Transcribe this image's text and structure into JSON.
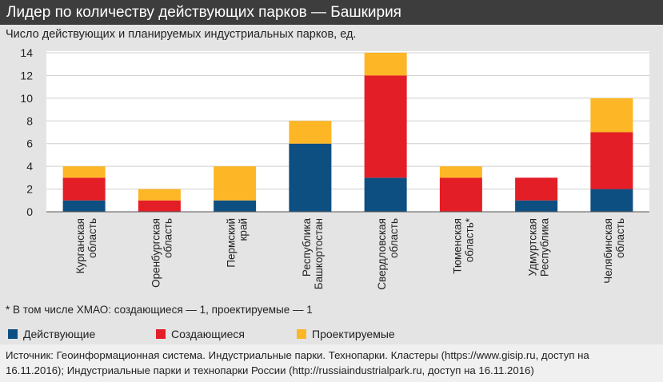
{
  "header": {
    "title": "Лидер по количеству действующих парков — Башкирия",
    "subtitle": "Число действующих и планируемых индустриальных парков, ед."
  },
  "colors": {
    "active": "#0e4f82",
    "creating": "#e41e26",
    "planned": "#fdb625"
  },
  "chart_data": {
    "type": "bar",
    "stacked": true,
    "categories": [
      [
        "Курганская",
        "область"
      ],
      [
        "Оренбургская",
        "область"
      ],
      [
        "Пермский",
        "край"
      ],
      [
        "Республика",
        "Башкортостан"
      ],
      [
        "Свердловская",
        "область"
      ],
      [
        "Тюменская",
        "область*"
      ],
      [
        "Удмуртская",
        "Республика"
      ],
      [
        "Челябинская",
        "область"
      ]
    ],
    "series": [
      {
        "name": "Действующие",
        "color": "#0e4f82",
        "values": [
          1,
          0,
          1,
          6,
          3,
          0,
          1,
          2
        ]
      },
      {
        "name": "Создающиеся",
        "color": "#e41e26",
        "values": [
          2,
          1,
          0,
          0,
          9,
          3,
          2,
          5
        ]
      },
      {
        "name": "Проектируемые",
        "color": "#fdb625",
        "values": [
          1,
          1,
          3,
          2,
          2,
          1,
          0,
          3
        ]
      }
    ],
    "ylim": [
      0,
      14
    ],
    "yticks": [
      0,
      2,
      4,
      6,
      8,
      10,
      12,
      14
    ],
    "grid": true,
    "legend_position": "bottom"
  },
  "footnote": "* В том числе ХМАО: создающиеся — 1, проектируемые — 1",
  "source": {
    "line1": "Источник:  Геоинформационная система. Индустриальные парки. Технопарки. Кластеры (https://www.gisip.ru, доступ на",
    "line2": "16.11.2016); Индустриальные парки и технопарки России (http://russiaindustrialpark.ru, доступ на 16.11.2016)"
  }
}
